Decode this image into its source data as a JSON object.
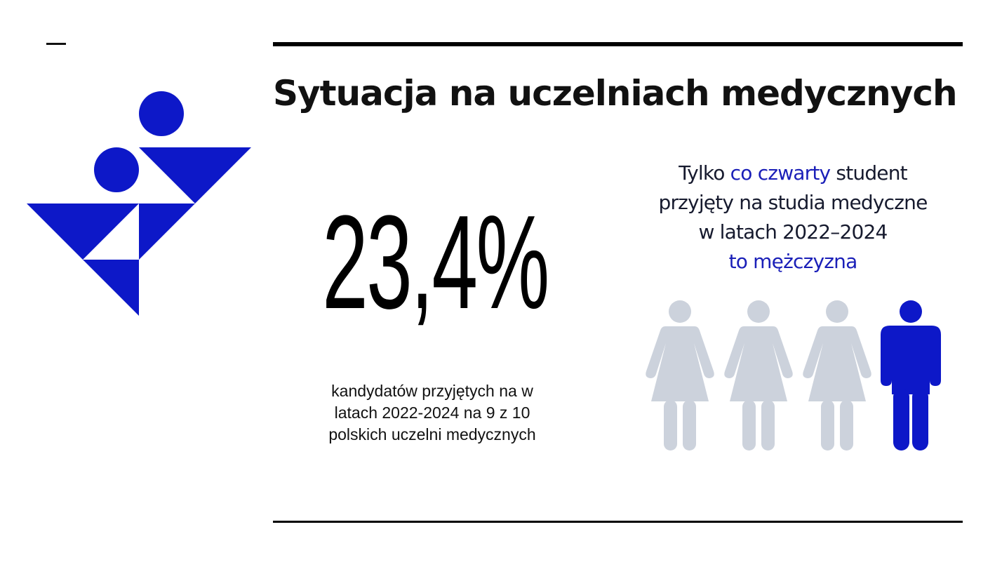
{
  "slide": {
    "title": "Sytuacja na uczelniach medycznych"
  },
  "stat": {
    "value": "23,4%",
    "caption": "kandydatów przyjętych na w latach 2022-2024 na 9 z 10 polskich uczelni medycznych"
  },
  "headline": {
    "part1": "Tylko ",
    "highlight1": "co czwarty",
    "part2": " student",
    "line2": "przyjęty na studia medyczne",
    "line3": "w latach 2022–2024",
    "highlight2": "to mężczyzna"
  },
  "infographic": {
    "figures": [
      {
        "icon": "woman-icon",
        "highlighted": false
      },
      {
        "icon": "woman-icon",
        "highlighted": false
      },
      {
        "icon": "woman-icon",
        "highlighted": false
      },
      {
        "icon": "man-icon",
        "highlighted": true
      }
    ],
    "colors": {
      "highlight": "#0d18c8",
      "muted": "#ccd2dc"
    }
  },
  "logo": {
    "icon": "abstract-figures-logo",
    "color": "#0d18c8"
  }
}
